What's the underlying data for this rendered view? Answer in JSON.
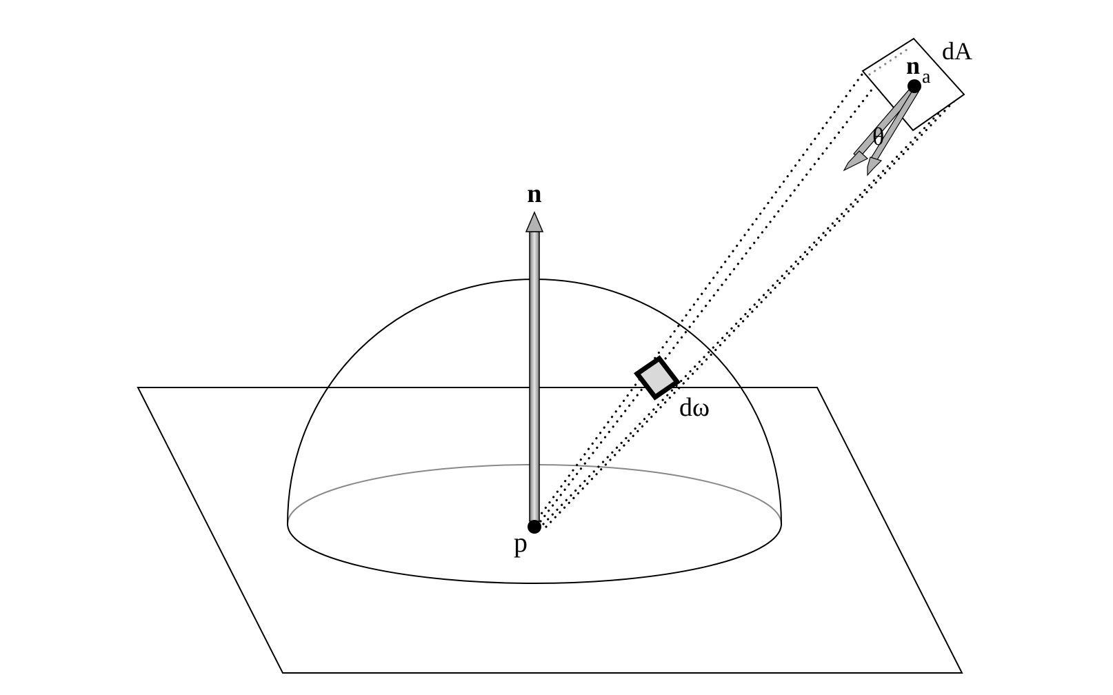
{
  "labels": {
    "normal": "n",
    "point": "p",
    "solid_angle": "dω",
    "area": "dA",
    "area_normal": "n",
    "area_normal_subscript": "a",
    "angle": "θ"
  },
  "colors": {
    "stroke": "#000000",
    "arrow_fill": "#b3b3b3",
    "patch_fill": "#d9d9d9",
    "hemisphere_back_rim": "#888888",
    "background": "#ffffff"
  }
}
